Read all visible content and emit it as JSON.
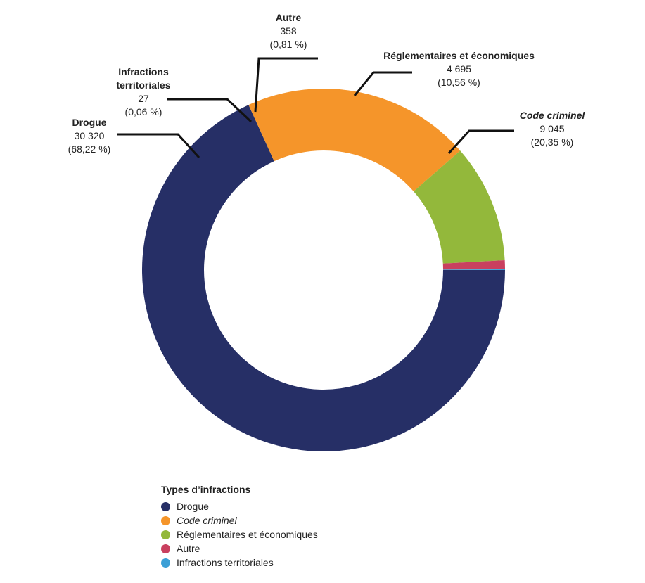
{
  "chart_data": {
    "type": "pie",
    "donut": true,
    "categories": [
      "Drogue",
      "Code criminel",
      "Réglementaires et économiques",
      "Autre",
      "Infractions territoriales"
    ],
    "values": [
      30320,
      9045,
      4695,
      358,
      27
    ],
    "percent_labels": [
      "(68,22 %)",
      "(20,35 %)",
      "(10,56 %)",
      "(0,81 %)",
      "(0,06 %)"
    ],
    "value_labels": [
      "30 320",
      "9 045",
      "4 695",
      "358",
      "27"
    ],
    "colors": [
      "#262f66",
      "#f5952a",
      "#93b83b",
      "#c9405f",
      "#3b9fd6"
    ],
    "italic": [
      false,
      true,
      false,
      false,
      false
    ]
  },
  "slice_labels": {
    "drogue": {
      "name": "Drogue",
      "value": "30 320",
      "pct": "(68,22 %)"
    },
    "code": {
      "name": "Code criminel",
      "value": "9 045",
      "pct": "(20,35 %)"
    },
    "regl": {
      "name": "Réglementaires et économiques",
      "value": "4 695",
      "pct": "(10,56 %)"
    },
    "autre": {
      "name": "Autre",
      "value": "358",
      "pct": "(0,81 %)"
    },
    "terr": {
      "name1": "Infractions",
      "name2": "territoriales",
      "value": "27",
      "pct": "(0,06 %)"
    }
  },
  "legend": {
    "title": "Types d’infractions",
    "items": [
      "Drogue",
      "Code criminel",
      "Réglementaires et économiques",
      "Autre",
      "Infractions territoriales"
    ]
  }
}
